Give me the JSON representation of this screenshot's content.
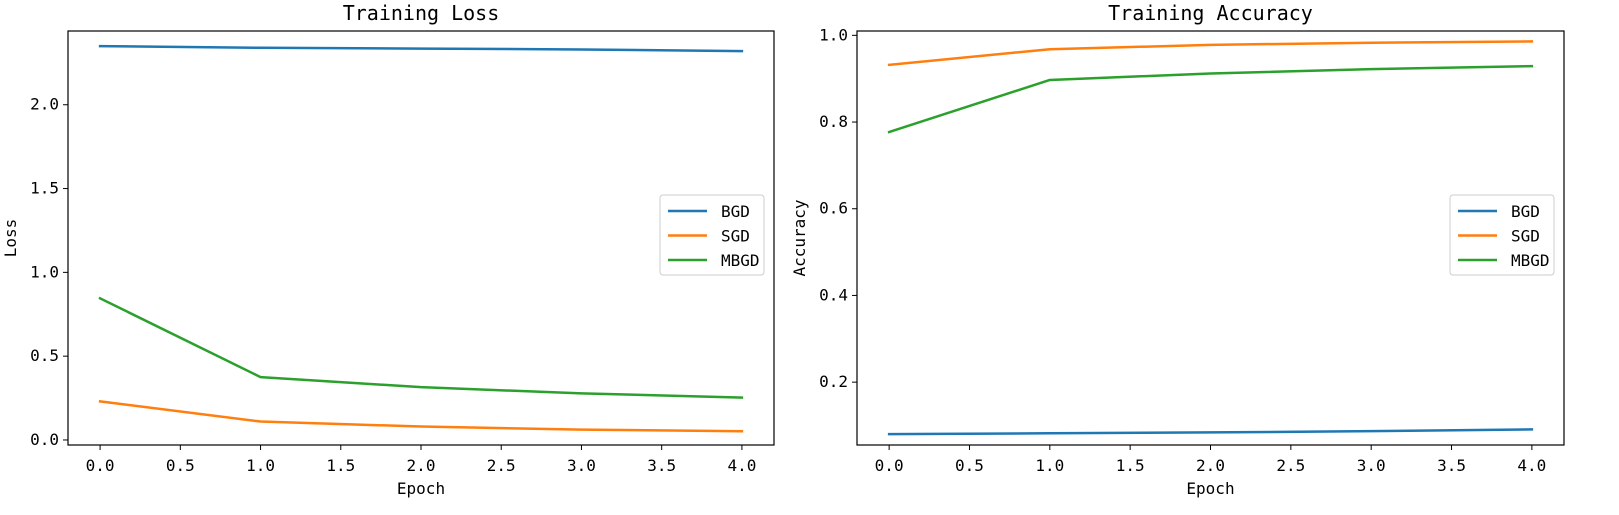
{
  "chart_data": [
    {
      "type": "line",
      "title": "Training Loss",
      "xlabel": "Epoch",
      "ylabel": "Loss",
      "x": [
        0,
        1,
        2,
        3,
        4
      ],
      "xlim": [
        -0.2,
        4.2
      ],
      "ylim": [
        -0.03,
        2.44
      ],
      "xticks": [
        "0.0",
        "0.5",
        "1.0",
        "1.5",
        "2.0",
        "2.5",
        "3.0",
        "3.5",
        "4.0"
      ],
      "yticks": [
        "0.0",
        "0.5",
        "1.0",
        "1.5",
        "2.0"
      ],
      "grid": false,
      "legend_position": "center-right",
      "series": [
        {
          "name": "BGD",
          "color": "#1f77b4",
          "values": [
            2.35,
            2.34,
            2.335,
            2.33,
            2.32
          ]
        },
        {
          "name": "SGD",
          "color": "#ff7f0e",
          "values": [
            0.23,
            0.11,
            0.08,
            0.062,
            0.052
          ]
        },
        {
          "name": "MBGD",
          "color": "#2ca02c",
          "values": [
            0.845,
            0.375,
            0.315,
            0.278,
            0.253
          ]
        }
      ]
    },
    {
      "type": "line",
      "title": "Training Accuracy",
      "xlabel": "Epoch",
      "ylabel": "Accuracy",
      "x": [
        0,
        1,
        2,
        3,
        4
      ],
      "xlim": [
        -0.2,
        4.2
      ],
      "ylim": [
        0.055,
        1.01
      ],
      "xticks": [
        "0.0",
        "0.5",
        "1.0",
        "1.5",
        "2.0",
        "2.5",
        "3.0",
        "3.5",
        "4.0"
      ],
      "yticks": [
        "0.2",
        "0.4",
        "0.6",
        "0.8",
        "1.0"
      ],
      "grid": false,
      "legend_position": "center-right",
      "series": [
        {
          "name": "BGD",
          "color": "#1f77b4",
          "values": [
            0.08,
            0.082,
            0.084,
            0.087,
            0.091
          ]
        },
        {
          "name": "SGD",
          "color": "#ff7f0e",
          "values": [
            0.932,
            0.968,
            0.978,
            0.983,
            0.986
          ]
        },
        {
          "name": "MBGD",
          "color": "#2ca02c",
          "values": [
            0.777,
            0.897,
            0.912,
            0.922,
            0.929
          ]
        }
      ]
    }
  ]
}
